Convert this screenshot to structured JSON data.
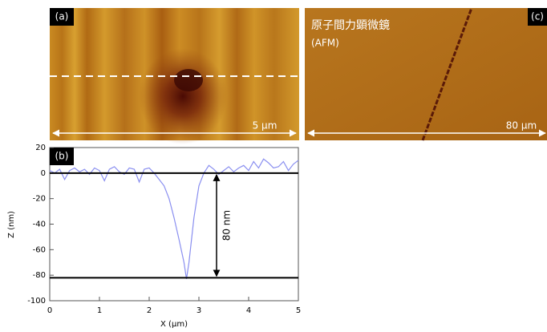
{
  "panels": {
    "a": {
      "label": "(a)",
      "scale": "5 µm"
    },
    "c": {
      "label": "(c)",
      "title": "原子間力顕微鏡",
      "subtitle": "(AFM)",
      "scale": "80 µm"
    }
  },
  "chart_data": {
    "type": "line",
    "label": "(b)",
    "x_label": "X (µm)",
    "y_label": "Z (nm)",
    "x": [
      0,
      0.1,
      0.2,
      0.3,
      0.4,
      0.5,
      0.6,
      0.7,
      0.8,
      0.9,
      1.0,
      1.1,
      1.2,
      1.3,
      1.4,
      1.5,
      1.6,
      1.7,
      1.8,
      1.9,
      2.0,
      2.1,
      2.2,
      2.3,
      2.4,
      2.5,
      2.6,
      2.7,
      2.75,
      2.8,
      2.9,
      3.0,
      3.1,
      3.2,
      3.3,
      3.4,
      3.5,
      3.6,
      3.7,
      3.8,
      3.9,
      4.0,
      4.1,
      4.2,
      4.3,
      4.4,
      4.5,
      4.6,
      4.7,
      4.8,
      4.9,
      5.0
    ],
    "series": [
      {
        "color": "#8a8ff0",
        "values": [
          2,
          0,
          3,
          -5,
          2,
          4,
          1,
          3,
          -1,
          4,
          2,
          -6,
          3,
          5,
          1,
          -1,
          4,
          3,
          -7,
          3,
          4,
          0,
          -5,
          -10,
          -20,
          -35,
          -52,
          -70,
          -83,
          -70,
          -35,
          -10,
          0,
          6,
          3,
          -1,
          2,
          5,
          1,
          4,
          6,
          2,
          9,
          4,
          11,
          8,
          4,
          5,
          9,
          2,
          7,
          10
        ]
      }
    ],
    "xlim": [
      0,
      5
    ],
    "xticks": [
      0,
      1,
      2,
      3,
      4,
      5
    ],
    "ylim": [
      -100,
      20
    ],
    "yticks": [
      20,
      0,
      -20,
      -40,
      -60,
      -80,
      -100
    ],
    "hlines": [
      0,
      -82
    ],
    "annotation": "80 nm"
  }
}
